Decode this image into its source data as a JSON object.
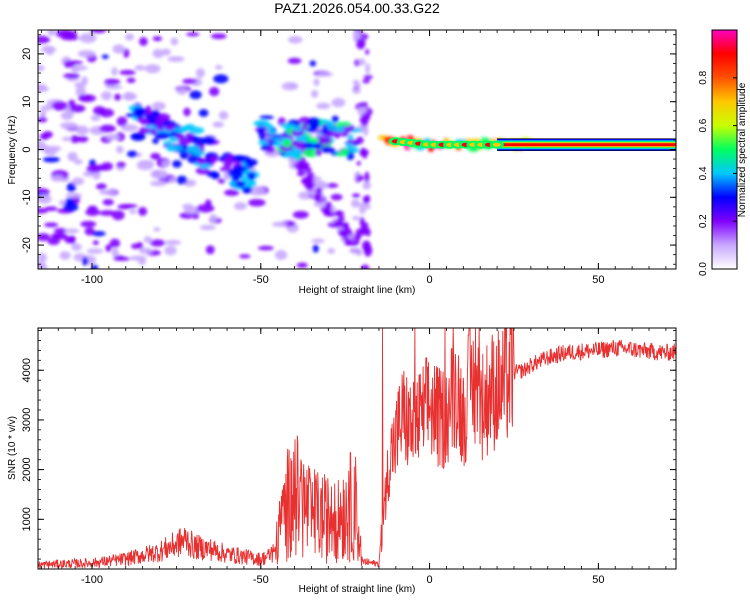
{
  "title": "PAZ1.2026.054.00.33.G22",
  "chart_data": [
    {
      "type": "heatmap",
      "title": "PAZ1.2026.054.00.33.G22",
      "xlabel": "Height of straight line (km)",
      "ylabel": "Frequency (Hz)",
      "xlim": [
        -116,
        73
      ],
      "ylim": [
        -25,
        25
      ],
      "x_ticks": [
        -100,
        -50,
        0,
        50
      ],
      "x_tick_labels": [
        "-100",
        "-50",
        "0",
        "50"
      ],
      "y_ticks": [
        -20,
        -10,
        0,
        10,
        20
      ],
      "y_tick_labels": [
        "-20",
        "-10",
        "0",
        "10",
        "20"
      ],
      "colorbar": {
        "label": "Normalized spectral amplitude",
        "range": [
          0,
          1
        ],
        "ticks": [
          0.0,
          0.2,
          0.4,
          0.6,
          0.8
        ],
        "tick_labels": [
          "0.0",
          "0.2",
          "0.4",
          "0.6",
          "0.8"
        ],
        "colors": [
          "#ffffff",
          "#c8a8ff",
          "#8000ff",
          "#0000ff",
          "#00c8ff",
          "#00ff60",
          "#c8ff00",
          "#ffc800",
          "#ff5000",
          "#ff0000",
          "#ff00c0"
        ]
      },
      "ridge_segments": [
        {
          "x": [
            -88,
            -72,
            -62,
            -52
          ],
          "freq": [
            6,
            2,
            -3,
            -6
          ],
          "peak": 0.35
        },
        {
          "x": [
            -50,
            -40,
            -30,
            -22
          ],
          "freq": [
            4,
            2,
            3,
            1
          ],
          "peak": 0.4
        },
        {
          "x": [
            -14,
            0,
            20,
            73
          ],
          "freq": [
            2,
            1,
            1,
            1
          ],
          "peak": 0.95
        }
      ]
    },
    {
      "type": "line",
      "xlabel": "Height of straight line (km)",
      "ylabel": "SNR (10 * v/v)",
      "xlim": [
        -116,
        73
      ],
      "ylim": [
        0,
        4850
      ],
      "x_ticks": [
        -100,
        -50,
        0,
        50
      ],
      "x_tick_labels": [
        "-100",
        "-50",
        "0",
        "50"
      ],
      "y_ticks": [
        1000,
        2000,
        3000,
        4000
      ],
      "y_tick_labels": [
        "1000",
        "2000",
        "3000",
        "4000"
      ],
      "line_color": "#e83030",
      "series": [
        {
          "name": "SNR",
          "x": [
            -116,
            -110,
            -100,
            -90,
            -80,
            -75,
            -72,
            -70,
            -65,
            -60,
            -55,
            -50,
            -46,
            -44,
            -42,
            -40,
            -35,
            -30,
            -25,
            -22,
            -20,
            -17,
            -15,
            -13,
            -12,
            -10,
            -8,
            -5,
            0,
            3,
            5,
            8,
            10,
            12,
            14,
            16,
            18,
            20,
            22,
            25,
            28,
            30,
            35,
            40,
            45,
            50,
            55,
            60,
            65,
            70,
            73
          ],
          "values": [
            80,
            100,
            120,
            200,
            350,
            500,
            600,
            450,
            400,
            300,
            250,
            200,
            300,
            900,
            1300,
            1500,
            1100,
            1000,
            1200,
            1300,
            150,
            120,
            100,
            1500,
            2200,
            2600,
            3100,
            2800,
            3300,
            3000,
            3100,
            3700,
            3000,
            3800,
            3500,
            3300,
            3600,
            3600,
            3700,
            3950,
            4000,
            4100,
            4250,
            4350,
            4380,
            4400,
            4450,
            4420,
            4380,
            4350,
            4380
          ]
        }
      ]
    }
  ]
}
